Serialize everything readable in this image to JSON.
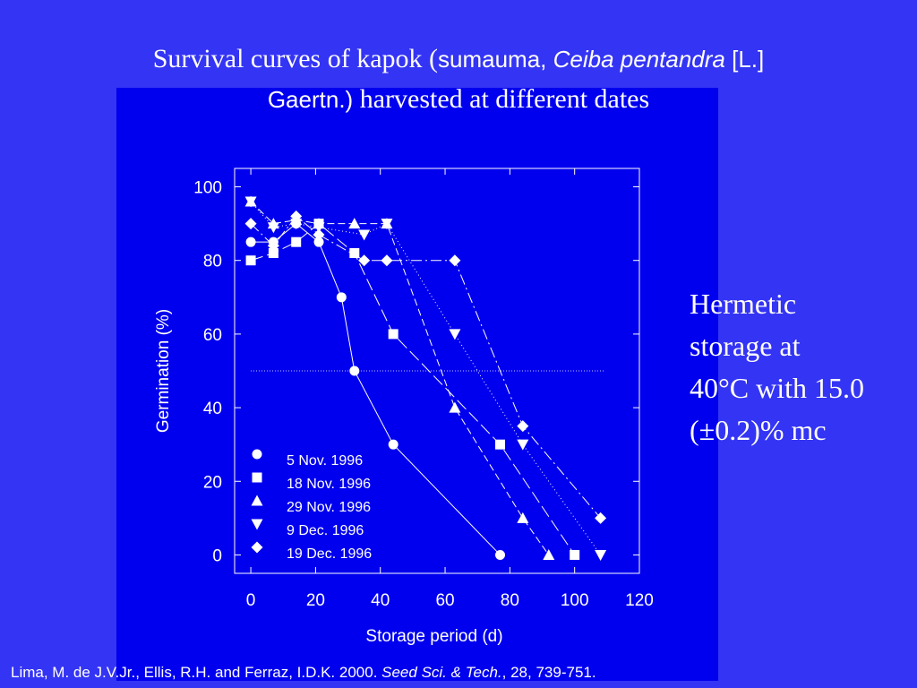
{
  "title_parts": [
    "Survival curves of kapok (",
    "sumauma, ",
    "Ceiba pentandra",
    " [L.]",
    "Gaertn.)",
    " harvested at different dates"
  ],
  "annotation": [
    "Hermetic",
    "storage at",
    "40°C with 15.0",
    "(±0.2)% mc"
  ],
  "citation": [
    "Lima, M. de J.V.Jr., Ellis, R.H. and Ferraz, I.D.K. 2000. ",
    "Seed Sci. & Tech.",
    ", 28, 739-751."
  ],
  "chart_data": {
    "type": "line",
    "xlabel": "Storage period (d)",
    "ylabel": "Germination (%)",
    "xlim": [
      -5,
      120
    ],
    "ylim": [
      -5,
      105
    ],
    "xticks": [
      0,
      20,
      40,
      60,
      80,
      100,
      120
    ],
    "yticks": [
      0,
      20,
      40,
      60,
      80,
      100
    ],
    "reference_y": 50,
    "series": [
      {
        "name": "5 Nov. 1996",
        "color": "#ffffff",
        "marker": "circle",
        "dash": "none",
        "x": [
          0,
          7,
          14,
          21,
          28,
          32,
          44,
          77
        ],
        "values": [
          85,
          85,
          90,
          85,
          70,
          50,
          30,
          0
        ]
      },
      {
        "name": "18 Nov. 1996",
        "color": "#ffffff",
        "marker": "square",
        "dash": "14 5",
        "x": [
          0,
          7,
          14,
          21,
          32,
          44,
          77,
          100
        ],
        "values": [
          80,
          82,
          85,
          90,
          82,
          60,
          30,
          0
        ]
      },
      {
        "name": "29 Nov. 1996",
        "color": "#ffffff",
        "marker": "triangle-up",
        "dash": "8 4",
        "x": [
          0,
          7,
          14,
          21,
          32,
          42,
          63,
          84,
          92
        ],
        "values": [
          96,
          90,
          91,
          90,
          90,
          90,
          40,
          10,
          0
        ]
      },
      {
        "name": "9 Dec. 1996",
        "color": "#ffffff",
        "marker": "triangle-down",
        "dash": "1 3",
        "x": [
          0,
          7,
          14,
          21,
          35,
          42,
          63,
          84,
          108
        ],
        "values": [
          96,
          89,
          90,
          89,
          87,
          90,
          60,
          30,
          0
        ]
      },
      {
        "name": "19 Dec. 1996",
        "color": "#ffffff",
        "marker": "diamond",
        "dash": "12 4 2 4",
        "x": [
          0,
          7,
          14,
          21,
          35,
          42,
          63,
          84,
          108
        ],
        "values": [
          90,
          84,
          92,
          87,
          80,
          80,
          80,
          35,
          10
        ]
      }
    ]
  }
}
